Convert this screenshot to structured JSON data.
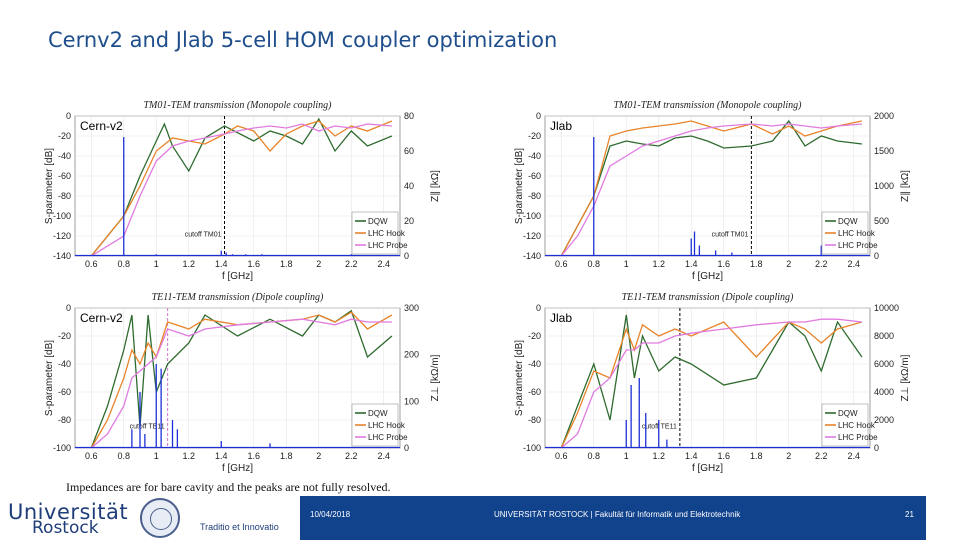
{
  "slide": {
    "title": "Cernv2 and Jlab 5-cell HOM coupler optimization",
    "note": "Impedances are for bare cavity and the peaks are not fully resolved.",
    "footer": {
      "date": "10/04/2018",
      "institution": "UNIVERSITÄT ROSTOCK | Fakultät für Informatik und Elektrotechnik",
      "page": "21",
      "logo_line1": "Universität",
      "logo_line2": "Rostock",
      "motto": "Traditio et Innovatio"
    }
  },
  "colors": {
    "dqw": "#2e6b2e",
    "hook": "#e8842a",
    "probe": "#e07be0",
    "impedance": "#1c2fd6",
    "cutoff_tm": "#000000",
    "cutoff_te_cern": "#d070d0",
    "cutoff_te_jlab": "#000000",
    "footer_bar": "#11428c",
    "title": "#1f4e8c"
  },
  "chart_data": [
    {
      "type": "line",
      "title": "TM01-TEM transmission (Monopole coupling)",
      "panel_label": "Cern-v2",
      "xlabel": "f [GHz]",
      "ylabel": "S-parameter [dB]",
      "ylabel2": "Z∥ [kΩ]",
      "xlim": [
        0.5,
        2.5
      ],
      "ylim": [
        -140,
        0
      ],
      "y2lim": [
        0,
        80
      ],
      "xticks": [
        "0.6",
        "0.8",
        "1",
        "1.2",
        "1.4",
        "1.6",
        "1.8",
        "2",
        "2.2",
        "2.4"
      ],
      "yticks": [
        "0",
        "-20",
        "-40",
        "-60",
        "-80",
        "-100",
        "-120",
        "-140"
      ],
      "y2ticks": [
        "80",
        "60",
        "40",
        "20",
        "0"
      ],
      "cutoff": {
        "x": 1.42,
        "label": "cutoff TM01",
        "style": "black-dashed"
      },
      "legend": [
        "DQW",
        "LHC Hook",
        "LHC Probe"
      ],
      "series": [
        {
          "name": "DQW",
          "x": [
            0.6,
            0.8,
            0.9,
            1.0,
            1.05,
            1.1,
            1.2,
            1.3,
            1.42,
            1.6,
            1.7,
            1.8,
            1.9,
            2.0,
            2.1,
            2.2,
            2.3,
            2.45
          ],
          "values": [
            -140,
            -100,
            -60,
            -25,
            -8,
            -30,
            -55,
            -22,
            -10,
            -25,
            -15,
            -20,
            -28,
            -3,
            -35,
            -15,
            -30,
            -20
          ]
        },
        {
          "name": "LHC Hook",
          "x": [
            0.6,
            0.8,
            0.9,
            1.0,
            1.1,
            1.2,
            1.3,
            1.42,
            1.5,
            1.6,
            1.7,
            1.8,
            1.9,
            2.0,
            2.1,
            2.2,
            2.3,
            2.45
          ],
          "values": [
            -140,
            -100,
            -70,
            -35,
            -22,
            -25,
            -28,
            -18,
            -10,
            -15,
            -35,
            -18,
            -10,
            -5,
            -20,
            -10,
            -15,
            -5
          ]
        },
        {
          "name": "LHC Probe",
          "x": [
            0.6,
            0.8,
            0.9,
            1.0,
            1.1,
            1.2,
            1.3,
            1.42,
            1.5,
            1.6,
            1.7,
            1.8,
            1.9,
            2.0,
            2.1,
            2.2,
            2.3,
            2.45
          ],
          "values": [
            -140,
            -120,
            -80,
            -45,
            -30,
            -25,
            -22,
            -18,
            -15,
            -12,
            -10,
            -12,
            -8,
            -15,
            -10,
            -12,
            -8,
            -10
          ]
        },
        {
          "name": "Impedance",
          "axis": "y2",
          "x": [
            0.8,
            1.0,
            1.4,
            1.43,
            1.47,
            1.55,
            1.65,
            2.2
          ],
          "values": [
            68,
            1,
            3,
            2,
            1,
            1,
            1,
            1
          ]
        }
      ]
    },
    {
      "type": "line",
      "title": "TM01-TEM transmission (Monopole coupling)",
      "panel_label": "Jlab",
      "xlabel": "f [GHz]",
      "ylabel": "S-parameter [dB]",
      "ylabel2": "Z∥ [kΩ]",
      "xlim": [
        0.5,
        2.5
      ],
      "ylim": [
        -140,
        0
      ],
      "y2lim": [
        0,
        2000
      ],
      "xticks": [
        "0.6",
        "0.8",
        "1",
        "1.2",
        "1.4",
        "1.6",
        "1.8",
        "2",
        "2.2",
        "2.4"
      ],
      "yticks": [
        "0",
        "-20",
        "-40",
        "-60",
        "-80",
        "-100",
        "-120",
        "-140"
      ],
      "y2ticks": [
        "2000",
        "1500",
        "1000",
        "500",
        "0"
      ],
      "cutoff": {
        "x": 1.77,
        "label": "cutoff TM01",
        "style": "black-dashed"
      },
      "legend": [
        "DQW",
        "LHC Hook",
        "LHC Probe"
      ],
      "series": [
        {
          "name": "DQW",
          "x": [
            0.6,
            0.7,
            0.8,
            0.9,
            1.0,
            1.1,
            1.2,
            1.3,
            1.4,
            1.5,
            1.6,
            1.77,
            1.9,
            2.0,
            2.1,
            2.2,
            2.3,
            2.45
          ],
          "values": [
            -140,
            -110,
            -80,
            -30,
            -25,
            -28,
            -30,
            -22,
            -20,
            -25,
            -32,
            -30,
            -25,
            -5,
            -30,
            -20,
            -25,
            -28
          ]
        },
        {
          "name": "LHC Hook",
          "x": [
            0.6,
            0.7,
            0.8,
            0.9,
            1.0,
            1.1,
            1.2,
            1.3,
            1.4,
            1.5,
            1.6,
            1.77,
            1.9,
            2.0,
            2.1,
            2.2,
            2.3,
            2.45
          ],
          "values": [
            -140,
            -110,
            -80,
            -20,
            -15,
            -12,
            -10,
            -8,
            -5,
            -10,
            -15,
            -8,
            -18,
            -10,
            -20,
            -15,
            -10,
            -5
          ]
        },
        {
          "name": "LHC Probe",
          "x": [
            0.6,
            0.7,
            0.8,
            0.9,
            1.0,
            1.1,
            1.2,
            1.3,
            1.4,
            1.5,
            1.6,
            1.77,
            1.9,
            2.0,
            2.1,
            2.2,
            2.3,
            2.45
          ],
          "values": [
            -140,
            -120,
            -90,
            -50,
            -40,
            -30,
            -25,
            -20,
            -15,
            -12,
            -10,
            -8,
            -10,
            -8,
            -10,
            -12,
            -10,
            -8
          ]
        },
        {
          "name": "Impedance",
          "axis": "y2",
          "x": [
            0.8,
            1.4,
            1.42,
            1.45,
            1.55,
            1.65,
            2.2
          ],
          "values": [
            1700,
            250,
            350,
            150,
            80,
            50,
            150
          ]
        }
      ]
    },
    {
      "type": "line",
      "title": "TE11-TEM transmission (Dipole coupling)",
      "panel_label": "Cern-v2",
      "xlabel": "f [GHz]",
      "ylabel": "S-parameter [dB]",
      "ylabel2": "Z⊥ [kΩ/m]",
      "xlim": [
        0.5,
        2.5
      ],
      "ylim": [
        -100,
        0
      ],
      "y2lim": [
        0,
        300
      ],
      "xticks": [
        "0.6",
        "0.8",
        "1",
        "1.2",
        "1.4",
        "1.6",
        "1.8",
        "2",
        "2.2",
        "2.4"
      ],
      "yticks": [
        "0",
        "-20",
        "-40",
        "-60",
        "-80",
        "-100"
      ],
      "y2ticks": [
        "300",
        "200",
        "100",
        "0"
      ],
      "cutoff": {
        "x": 1.07,
        "label": "cutoff TE11",
        "style": "magenta-dashed"
      },
      "legend": [
        "DQW",
        "LHC Hook",
        "LHC Probe"
      ],
      "series": [
        {
          "name": "DQW",
          "x": [
            0.6,
            0.7,
            0.8,
            0.85,
            0.9,
            0.95,
            1.0,
            1.07,
            1.2,
            1.3,
            1.5,
            1.7,
            1.9,
            2.0,
            2.1,
            2.2,
            2.3,
            2.45
          ],
          "values": [
            -100,
            -70,
            -30,
            -5,
            -85,
            -5,
            -60,
            -40,
            -25,
            -5,
            -20,
            -8,
            -20,
            -5,
            -10,
            -2,
            -35,
            -20
          ]
        },
        {
          "name": "LHC Hook",
          "x": [
            0.6,
            0.7,
            0.8,
            0.85,
            0.9,
            0.95,
            1.0,
            1.07,
            1.2,
            1.3,
            1.5,
            1.7,
            1.9,
            2.0,
            2.1,
            2.2,
            2.3,
            2.45
          ],
          "values": [
            -100,
            -80,
            -50,
            -30,
            -40,
            -25,
            -35,
            -10,
            -15,
            -8,
            -12,
            -10,
            -8,
            -5,
            -10,
            -3,
            -15,
            -5
          ]
        },
        {
          "name": "LHC Probe",
          "x": [
            0.6,
            0.7,
            0.8,
            0.85,
            0.9,
            0.95,
            1.0,
            1.07,
            1.2,
            1.3,
            1.5,
            1.7,
            1.9,
            2.0,
            2.1,
            2.2,
            2.3,
            2.45
          ],
          "values": [
            -100,
            -90,
            -70,
            -50,
            -45,
            -40,
            -35,
            -15,
            -20,
            -15,
            -12,
            -10,
            -8,
            -10,
            -12,
            -8,
            -10,
            -10
          ]
        },
        {
          "name": "Impedance",
          "axis": "y2",
          "x": [
            0.85,
            0.9,
            0.93,
            1.0,
            1.03,
            1.1,
            1.13,
            1.4,
            1.7
          ],
          "values": [
            40,
            120,
            30,
            180,
            170,
            60,
            40,
            15,
            10
          ]
        }
      ]
    },
    {
      "type": "line",
      "title": "TE11-TEM transmission (Dipole coupling)",
      "panel_label": "Jlab",
      "xlabel": "f [GHz]",
      "ylabel": "S-parameter [dB]",
      "ylabel2": "Z⊥ [kΩ/m]",
      "xlim": [
        0.5,
        2.5
      ],
      "ylim": [
        -100,
        0
      ],
      "y2lim": [
        0,
        10000
      ],
      "xticks": [
        "0.6",
        "0.8",
        "1",
        "1.2",
        "1.4",
        "1.6",
        "1.8",
        "2",
        "2.2",
        "2.4"
      ],
      "yticks": [
        "0",
        "-20",
        "-40",
        "-60",
        "-80",
        "-100"
      ],
      "y2ticks": [
        "10000",
        "8000",
        "6000",
        "4000",
        "2000",
        "0"
      ],
      "cutoff": {
        "x": 1.33,
        "label": "cutoff TE11",
        "style": "black-dashed"
      },
      "legend": [
        "DQW",
        "LHC Hook",
        "LHC Probe"
      ],
      "series": [
        {
          "name": "DQW",
          "x": [
            0.6,
            0.7,
            0.8,
            0.9,
            1.0,
            1.05,
            1.1,
            1.2,
            1.3,
            1.4,
            1.6,
            1.8,
            2.0,
            2.1,
            2.2,
            2.3,
            2.45
          ],
          "values": [
            -100,
            -70,
            -40,
            -80,
            -5,
            -50,
            -20,
            -45,
            -35,
            -40,
            -55,
            -50,
            -10,
            -20,
            -45,
            -10,
            -35
          ]
        },
        {
          "name": "LHC Hook",
          "x": [
            0.6,
            0.7,
            0.8,
            0.9,
            1.0,
            1.05,
            1.1,
            1.2,
            1.3,
            1.4,
            1.6,
            1.8,
            2.0,
            2.1,
            2.2,
            2.3,
            2.45
          ],
          "values": [
            -100,
            -75,
            -45,
            -50,
            -15,
            -30,
            -12,
            -20,
            -15,
            -20,
            -10,
            -35,
            -10,
            -15,
            -25,
            -15,
            -10
          ]
        },
        {
          "name": "LHC Probe",
          "x": [
            0.6,
            0.7,
            0.8,
            0.9,
            1.0,
            1.05,
            1.1,
            1.2,
            1.3,
            1.4,
            1.6,
            1.8,
            2.0,
            2.1,
            2.2,
            2.3,
            2.45
          ],
          "values": [
            -100,
            -90,
            -60,
            -50,
            -30,
            -30,
            -25,
            -25,
            -20,
            -18,
            -15,
            -12,
            -10,
            -10,
            -8,
            -8,
            -10
          ]
        },
        {
          "name": "Impedance",
          "axis": "y2",
          "x": [
            1.0,
            1.03,
            1.08,
            1.12,
            1.2,
            1.25
          ],
          "values": [
            2000,
            4500,
            5000,
            2500,
            2000,
            600
          ]
        }
      ]
    }
  ]
}
